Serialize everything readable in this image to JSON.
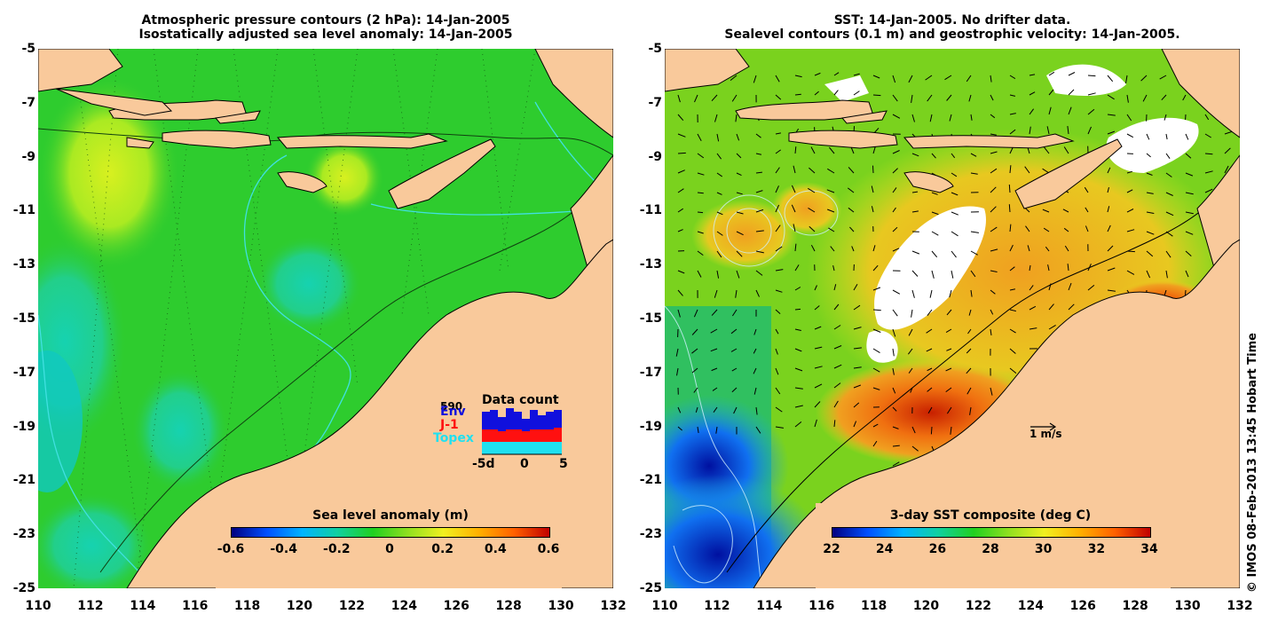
{
  "left_panel": {
    "title_line1": "Atmospheric pressure contours (2 hPa): 14-Jan-2005",
    "title_line2": "Isostatically adjusted sea level anomaly: 14-Jan-2005",
    "colorbar": {
      "title": "Sea level anomaly (m)",
      "ticks": [
        "-0.6",
        "-0.4",
        "-0.2",
        "0",
        "0.2",
        "0.4",
        "0.6"
      ]
    },
    "data_count": {
      "title": "Data count",
      "max_count": "590",
      "satellites": [
        "Env",
        "J-1",
        "Topex"
      ],
      "satellite_colors": [
        "#1010dd",
        "#ff1010",
        "#20e0f0"
      ],
      "x_ticks": [
        "-5d",
        "0",
        "5"
      ]
    }
  },
  "right_panel": {
    "title_line1": "SST: 14-Jan-2005. No drifter data.",
    "title_line2": "Sealevel contours (0.1 m) and geostrophic velocity: 14-Jan-2005.",
    "colorbar": {
      "title": "3-day SST composite (deg C)",
      "ticks": [
        "22",
        "24",
        "26",
        "28",
        "30",
        "32",
        "34"
      ]
    },
    "velocity_scale": "1 m/s"
  },
  "axes": {
    "lat_ticks": [
      "-5",
      "-7",
      "-9",
      "-11",
      "-13",
      "-15",
      "-17",
      "-19",
      "-21",
      "-23",
      "-25"
    ],
    "lon_ticks": [
      "110",
      "112",
      "114",
      "116",
      "118",
      "120",
      "122",
      "124",
      "126",
      "128",
      "130",
      "132"
    ]
  },
  "credit": "© IMOS 08-Feb-2013 13:45 Hobart Time",
  "colors": {
    "land": "#f9c99b",
    "sla_background": "#2ecc2e",
    "sst_background": "#7ad21e"
  }
}
